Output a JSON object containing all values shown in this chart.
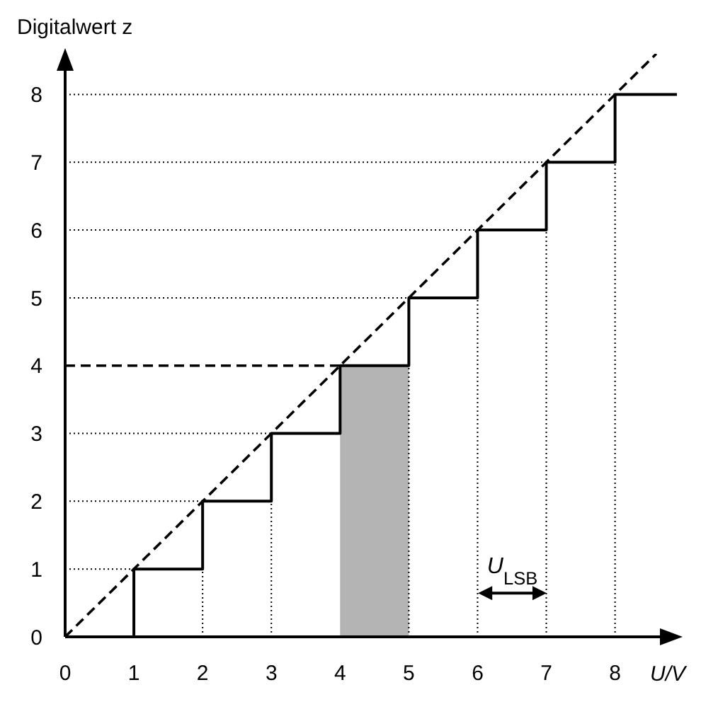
{
  "chart_data": {
    "type": "step",
    "ylabel": "Digitalwert z",
    "xlabel": "U/V",
    "xlim": [
      0,
      8.9
    ],
    "ylim": [
      0,
      8.6
    ],
    "xticks": [
      0,
      1,
      2,
      3,
      4,
      5,
      6,
      7,
      8
    ],
    "yticks": [
      0,
      1,
      2,
      3,
      4,
      5,
      6,
      7,
      8
    ],
    "series": [
      {
        "type": "step",
        "color": "#000000",
        "x": [
          0,
          1,
          2,
          3,
          4,
          5,
          6,
          7,
          8,
          8.9
        ],
        "values": [
          0,
          1,
          2,
          3,
          4,
          5,
          6,
          7,
          8,
          8
        ]
      },
      {
        "type": "line",
        "color": "#000000",
        "line_style": "dashed",
        "x": [
          0,
          8.6
        ],
        "values": [
          0,
          8.6
        ]
      },
      {
        "type": "line",
        "color": "#000000",
        "line_style": "dashed",
        "x": [
          0,
          4
        ],
        "values": [
          4,
          4
        ]
      },
      {
        "type": "line",
        "color": "#000000",
        "line_style": "dotted",
        "x": [
          0,
          1
        ],
        "values": [
          1,
          1
        ]
      },
      {
        "type": "line",
        "color": "#000000",
        "line_style": "dotted",
        "x": [
          0,
          2
        ],
        "values": [
          2,
          2
        ]
      },
      {
        "type": "line",
        "color": "#000000",
        "line_style": "dotted",
        "x": [
          0,
          3
        ],
        "values": [
          3,
          3
        ]
      },
      {
        "type": "line",
        "color": "#000000",
        "line_style": "dotted",
        "x": [
          0,
          5
        ],
        "values": [
          5,
          5
        ]
      },
      {
        "type": "line",
        "color": "#000000",
        "line_style": "dotted",
        "x": [
          0,
          6
        ],
        "values": [
          6,
          6
        ]
      },
      {
        "type": "line",
        "color": "#000000",
        "line_style": "dotted",
        "x": [
          0,
          7
        ],
        "values": [
          7,
          7
        ]
      },
      {
        "type": "line",
        "color": "#000000",
        "line_style": "dotted",
        "x": [
          0,
          8
        ],
        "values": [
          8,
          8
        ]
      },
      {
        "type": "line",
        "color": "#000000",
        "line_style": "dotted",
        "x": [
          2,
          2
        ],
        "values": [
          0,
          1
        ]
      },
      {
        "type": "line",
        "color": "#000000",
        "line_style": "dotted",
        "x": [
          3,
          3
        ],
        "values": [
          0,
          2
        ]
      },
      {
        "type": "line",
        "color": "#000000",
        "line_style": "dotted",
        "x": [
          5,
          5
        ],
        "values": [
          0,
          4
        ]
      },
      {
        "type": "line",
        "color": "#000000",
        "line_style": "dotted",
        "x": [
          6,
          6
        ],
        "values": [
          0,
          5
        ]
      },
      {
        "type": "line",
        "color": "#000000",
        "line_style": "dotted",
        "x": [
          7,
          7
        ],
        "values": [
          0,
          6
        ]
      },
      {
        "type": "line",
        "color": "#000000",
        "line_style": "dotted",
        "x": [
          8,
          8
        ],
        "values": [
          0,
          7
        ]
      }
    ],
    "bands": [
      {
        "axis": "x",
        "from": 4,
        "to": 5,
        "color": "#b4b4b4"
      }
    ],
    "annotations": [
      "U$_{LSB}$"
    ]
  }
}
